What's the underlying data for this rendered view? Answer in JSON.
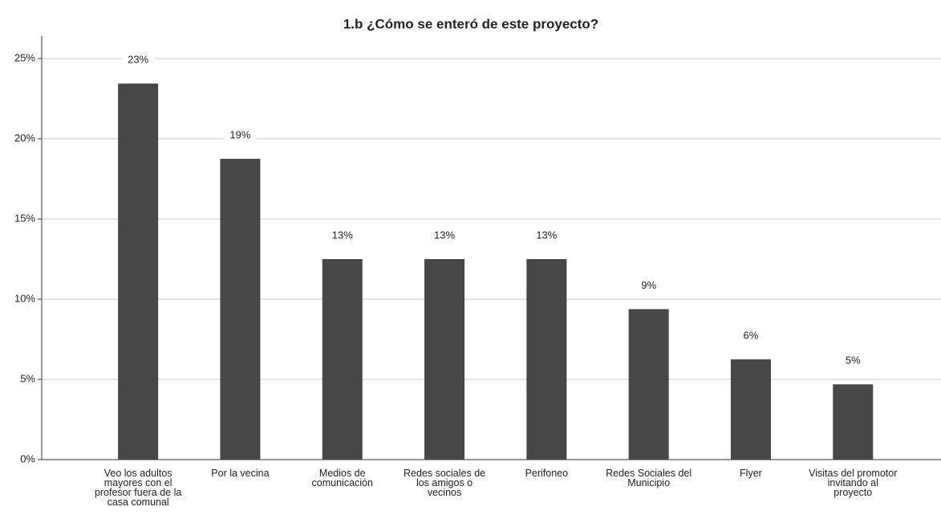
{
  "chart_data": {
    "type": "bar",
    "title": "1.b ¿Cómo se enteró de este proyecto?",
    "categories": [
      "Veo los adultos mayores con el profesor fuera de la casa comunal",
      "Por la vecina",
      "Medios de comunicación",
      "Redes sociales de los amigos o vecinos",
      "Perifoneo",
      "Redes Sociales del Municipio",
      "Flyer",
      "Visitas del promotor invitando al proyecto"
    ],
    "values": [
      23.44,
      18.75,
      12.5,
      12.5,
      12.5,
      9.38,
      6.25,
      4.69
    ],
    "value_labels": [
      "23%",
      "19%",
      "13%",
      "13%",
      "13%",
      "9%",
      "6%",
      "5%"
    ],
    "color": "#474747",
    "ylim": [
      0,
      26.4
    ],
    "yticks": [
      {
        "value": 0,
        "label": "0%"
      },
      {
        "value": 5,
        "label": "5%"
      },
      {
        "value": 10,
        "label": "10%"
      },
      {
        "value": 15,
        "label": "15%"
      },
      {
        "value": 20,
        "label": "20%"
      },
      {
        "value": 25,
        "label": "25%"
      }
    ],
    "grid": true
  }
}
